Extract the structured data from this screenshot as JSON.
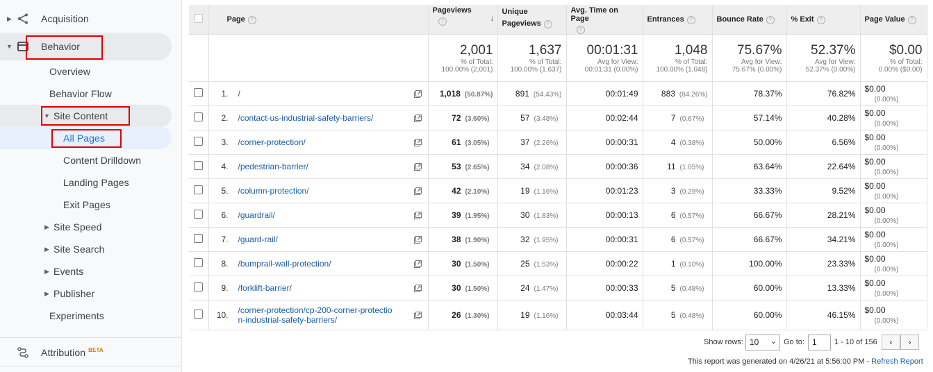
{
  "sidebar": {
    "acquisition_label": "Acquisition",
    "behavior_label": "Behavior",
    "items": [
      {
        "label": "Overview"
      },
      {
        "label": "Behavior Flow"
      },
      {
        "label": "Site Content"
      },
      {
        "label": "All Pages"
      },
      {
        "label": "Content Drilldown"
      },
      {
        "label": "Landing Pages"
      },
      {
        "label": "Exit Pages"
      },
      {
        "label": "Site Speed"
      },
      {
        "label": "Site Search"
      },
      {
        "label": "Events"
      },
      {
        "label": "Publisher"
      },
      {
        "label": "Experiments"
      }
    ],
    "attribution_label": "Attribution",
    "attribution_badge": "BETA"
  },
  "table": {
    "columns": {
      "page": "Page",
      "pageviews": "Pageviews",
      "unique_pageviews_1": "Unique",
      "unique_pageviews_2": "Pageviews",
      "avg_time": "Avg. Time on Page",
      "entrances": "Entrances",
      "bounce_rate": "Bounce Rate",
      "exit": "% Exit",
      "page_value": "Page Value"
    },
    "help_glyph": "?",
    "totals": {
      "pageviews": {
        "value": "2,001",
        "l1": "% of Total:",
        "l2": "100.00% (2,001)"
      },
      "unique": {
        "value": "1,637",
        "l1": "% of Total:",
        "l2": "100.00% (1,637)"
      },
      "avg_time": {
        "value": "00:01:31",
        "l1": "Avg for View:",
        "l2": "00:01:31 (0.00%)"
      },
      "entrances": {
        "value": "1,048",
        "l1": "% of Total:",
        "l2": "100.00% (1,048)"
      },
      "bounce": {
        "value": "75.67%",
        "l1": "Avg for View:",
        "l2": "75.67% (0.00%)"
      },
      "exit": {
        "value": "52.37%",
        "l1": "Avg for View:",
        "l2": "52.37% (0.00%)"
      },
      "page_value": {
        "value": "$0.00",
        "l1": "% of Total:",
        "l2": "0.00% ($0.00)"
      }
    },
    "rows": [
      {
        "idx": "1.",
        "page": "/",
        "pv": "1,018",
        "pv_pct": "(50.87%)",
        "upv": "891",
        "upv_pct": "(54.43%)",
        "time": "00:01:49",
        "ent": "883",
        "ent_pct": "(84.26%)",
        "bounce": "78.37%",
        "exit": "76.82%",
        "val": "$0.00",
        "val_pct": "(0.00%)"
      },
      {
        "idx": "2.",
        "page": "/contact-us-industrial-safety-barriers/",
        "pv": "72",
        "pv_pct": "(3.60%)",
        "upv": "57",
        "upv_pct": "(3.48%)",
        "time": "00:02:44",
        "ent": "7",
        "ent_pct": "(0.67%)",
        "bounce": "57.14%",
        "exit": "40.28%",
        "val": "$0.00",
        "val_pct": "(0.00%)"
      },
      {
        "idx": "3.",
        "page": "/corner-protection/",
        "pv": "61",
        "pv_pct": "(3.05%)",
        "upv": "37",
        "upv_pct": "(2.26%)",
        "time": "00:00:31",
        "ent": "4",
        "ent_pct": "(0.38%)",
        "bounce": "50.00%",
        "exit": "6.56%",
        "val": "$0.00",
        "val_pct": "(0.00%)"
      },
      {
        "idx": "4.",
        "page": "/pedestrian-barrier/",
        "pv": "53",
        "pv_pct": "(2.65%)",
        "upv": "34",
        "upv_pct": "(2.08%)",
        "time": "00:00:36",
        "ent": "11",
        "ent_pct": "(1.05%)",
        "bounce": "63.64%",
        "exit": "22.64%",
        "val": "$0.00",
        "val_pct": "(0.00%)"
      },
      {
        "idx": "5.",
        "page": "/column-protection/",
        "pv": "42",
        "pv_pct": "(2.10%)",
        "upv": "19",
        "upv_pct": "(1.16%)",
        "time": "00:01:23",
        "ent": "3",
        "ent_pct": "(0.29%)",
        "bounce": "33.33%",
        "exit": "9.52%",
        "val": "$0.00",
        "val_pct": "(0.00%)"
      },
      {
        "idx": "6.",
        "page": "/guardrail/",
        "pv": "39",
        "pv_pct": "(1.95%)",
        "upv": "30",
        "upv_pct": "(1.83%)",
        "time": "00:00:13",
        "ent": "6",
        "ent_pct": "(0.57%)",
        "bounce": "66.67%",
        "exit": "28.21%",
        "val": "$0.00",
        "val_pct": "(0.00%)"
      },
      {
        "idx": "7.",
        "page": "/guard-rail/",
        "pv": "38",
        "pv_pct": "(1.90%)",
        "upv": "32",
        "upv_pct": "(1.95%)",
        "time": "00:00:31",
        "ent": "6",
        "ent_pct": "(0.57%)",
        "bounce": "66.67%",
        "exit": "34.21%",
        "val": "$0.00",
        "val_pct": "(0.00%)"
      },
      {
        "idx": "8.",
        "page": "/bumprail-wall-protection/",
        "pv": "30",
        "pv_pct": "(1.50%)",
        "upv": "25",
        "upv_pct": "(1.53%)",
        "time": "00:00:22",
        "ent": "1",
        "ent_pct": "(0.10%)",
        "bounce": "100.00%",
        "exit": "23.33%",
        "val": "$0.00",
        "val_pct": "(0.00%)"
      },
      {
        "idx": "9.",
        "page": "/forklift-barrier/",
        "pv": "30",
        "pv_pct": "(1.50%)",
        "upv": "24",
        "upv_pct": "(1.47%)",
        "time": "00:00:33",
        "ent": "5",
        "ent_pct": "(0.48%)",
        "bounce": "60.00%",
        "exit": "13.33%",
        "val": "$0.00",
        "val_pct": "(0.00%)"
      },
      {
        "idx": "10.",
        "page_line1": "/corner-protection/cp-200-corner-protectio",
        "page_line2": "n-industrial-safety-barriers/",
        "pv": "26",
        "pv_pct": "(1.30%)",
        "upv": "19",
        "upv_pct": "(1.16%)",
        "time": "00:03:44",
        "ent": "5",
        "ent_pct": "(0.48%)",
        "bounce": "60.00%",
        "exit": "46.15%",
        "val": "$0.00",
        "val_pct": "(0.00%)"
      }
    ]
  },
  "footer": {
    "show_rows_label": "Show rows:",
    "show_rows_value": "10",
    "goto_label": "Go to:",
    "goto_value": "1",
    "range": "1 - 10 of 156",
    "prev_glyph": "‹",
    "next_glyph": "›",
    "generated_text": "This report was generated on 4/26/21 at 5:56:00 PM - ",
    "refresh_label": "Refresh Report"
  },
  "colors": {
    "link": "#1a5ea6",
    "highlight_box": "#e00000",
    "selected_bg": "#e8f0fe",
    "active_text": "#1a73e8"
  }
}
